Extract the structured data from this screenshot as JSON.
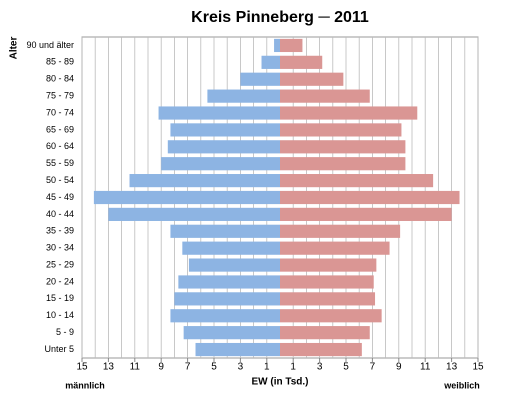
{
  "chart_data": {
    "type": "pyramid",
    "title": "Kreis Pinneberg ─ 2011",
    "ylabel": "Alter",
    "xlabel": "EW (in Tsd.)",
    "categories": [
      "90 und älter",
      "85 - 89",
      "80 - 84",
      "75 - 79",
      "70 - 74",
      "65 - 69",
      "60 - 64",
      "55 - 59",
      "50 - 54",
      "45 - 49",
      "40 - 44",
      "35 - 39",
      "30 - 34",
      "25 - 29",
      "20 - 24",
      "15 - 19",
      "10 - 14",
      "5 - 9",
      "Unter 5"
    ],
    "series": [
      {
        "name": "männlich",
        "color": "#8db4e3",
        "side": "left",
        "values": [
          0.45,
          1.4,
          3.0,
          5.5,
          9.2,
          8.3,
          8.5,
          9.0,
          11.4,
          14.1,
          13.0,
          8.3,
          7.4,
          6.9,
          7.7,
          8.0,
          8.3,
          7.3,
          6.4
        ]
      },
      {
        "name": "weiblich",
        "color": "#da9694",
        "side": "right",
        "values": [
          1.7,
          3.2,
          4.8,
          6.8,
          10.4,
          9.2,
          9.5,
          9.5,
          11.6,
          13.6,
          13.0,
          9.1,
          8.3,
          7.3,
          7.1,
          7.2,
          7.7,
          6.8,
          6.2
        ]
      }
    ],
    "xlim": [
      0,
      15
    ],
    "xticks": [
      1,
      3,
      5,
      7,
      9,
      11,
      13,
      15
    ],
    "xminorticks": [
      1,
      2,
      3,
      4,
      5,
      6,
      7,
      8,
      9,
      10,
      11,
      12,
      13,
      14,
      15
    ],
    "grid": true
  }
}
